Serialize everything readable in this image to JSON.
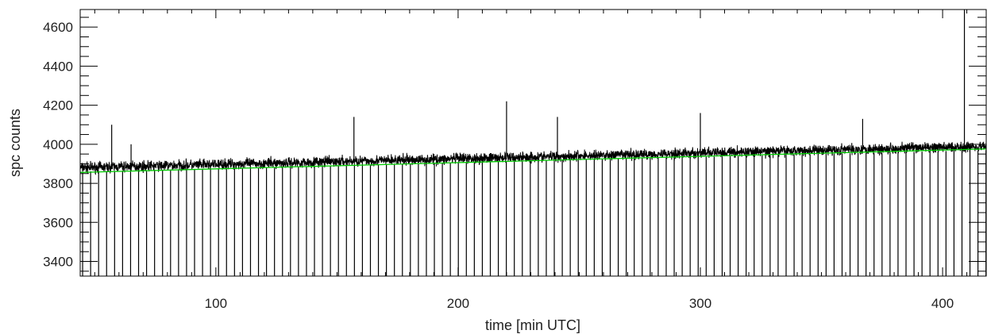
{
  "chart_data": {
    "type": "line",
    "title": "",
    "xlabel": "time [min UTC]",
    "ylabel": "spc counts",
    "xlim": [
      44,
      418
    ],
    "ylim": [
      3325,
      4690
    ],
    "x_ticks": [
      100,
      200,
      300,
      400
    ],
    "x_tick_labels": [
      "100",
      "200",
      "300",
      "400"
    ],
    "y_ticks": [
      3400,
      3600,
      3800,
      4000,
      4200,
      4400,
      4600
    ],
    "y_tick_labels": [
      "3400",
      "3600",
      "3800",
      "4000",
      "4200",
      "4400",
      "4600"
    ],
    "grid": false,
    "legend": "none",
    "colors": {
      "signal": "#000000",
      "trend": "#00cc00",
      "axes": "#000000"
    },
    "series": [
      {
        "style": "noisy-trace",
        "baseline": {
          "x": [
            44,
            418
          ],
          "y": [
            3880,
            3990
          ]
        },
        "noise_amplitude": 40,
        "periodic_dropouts": {
          "period_min": 3.3,
          "first_x": 45,
          "low_y": 3325
        },
        "spikes": [
          {
            "x": 57,
            "y": 4100
          },
          {
            "x": 65,
            "y": 4000
          },
          {
            "x": 157,
            "y": 4140
          },
          {
            "x": 220,
            "y": 4220
          },
          {
            "x": 241,
            "y": 4140
          },
          {
            "x": 300,
            "y": 4160
          },
          {
            "x": 367,
            "y": 4130
          },
          {
            "x": 409,
            "y": 4690
          }
        ]
      },
      {
        "style": "linear-fit",
        "x": [
          44,
          418
        ],
        "y": [
          3856,
          3976
        ]
      }
    ]
  }
}
